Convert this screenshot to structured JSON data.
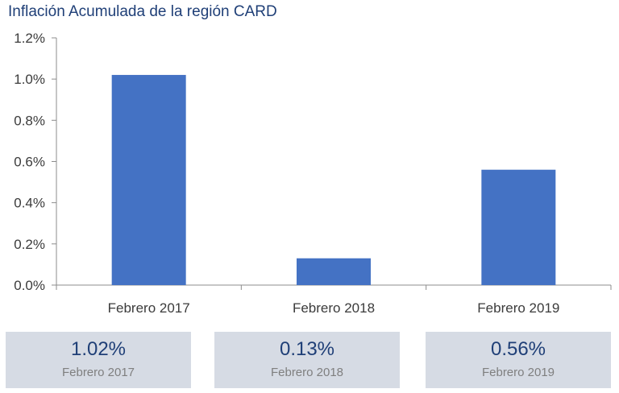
{
  "chart_data": {
    "type": "bar",
    "title": "Inflación Acumulada de la región CARD",
    "categories": [
      "Febrero 2017",
      "Febrero 2018",
      "Febrero 2019"
    ],
    "values": [
      1.02,
      0.13,
      0.56
    ],
    "ylim": [
      0,
      1.2
    ],
    "yticks": [
      "0.0%",
      "0.2%",
      "0.4%",
      "0.6%",
      "0.8%",
      "1.0%",
      "1.2%"
    ],
    "xlabel": "",
    "ylabel": "",
    "bar_color": "#4472c4",
    "grid": false
  },
  "summary_cards": [
    {
      "value": "1.02%",
      "label": "Febrero 2017"
    },
    {
      "value": "0.13%",
      "label": "Febrero 2018"
    },
    {
      "value": "0.56%",
      "label": "Febrero 2019"
    }
  ]
}
